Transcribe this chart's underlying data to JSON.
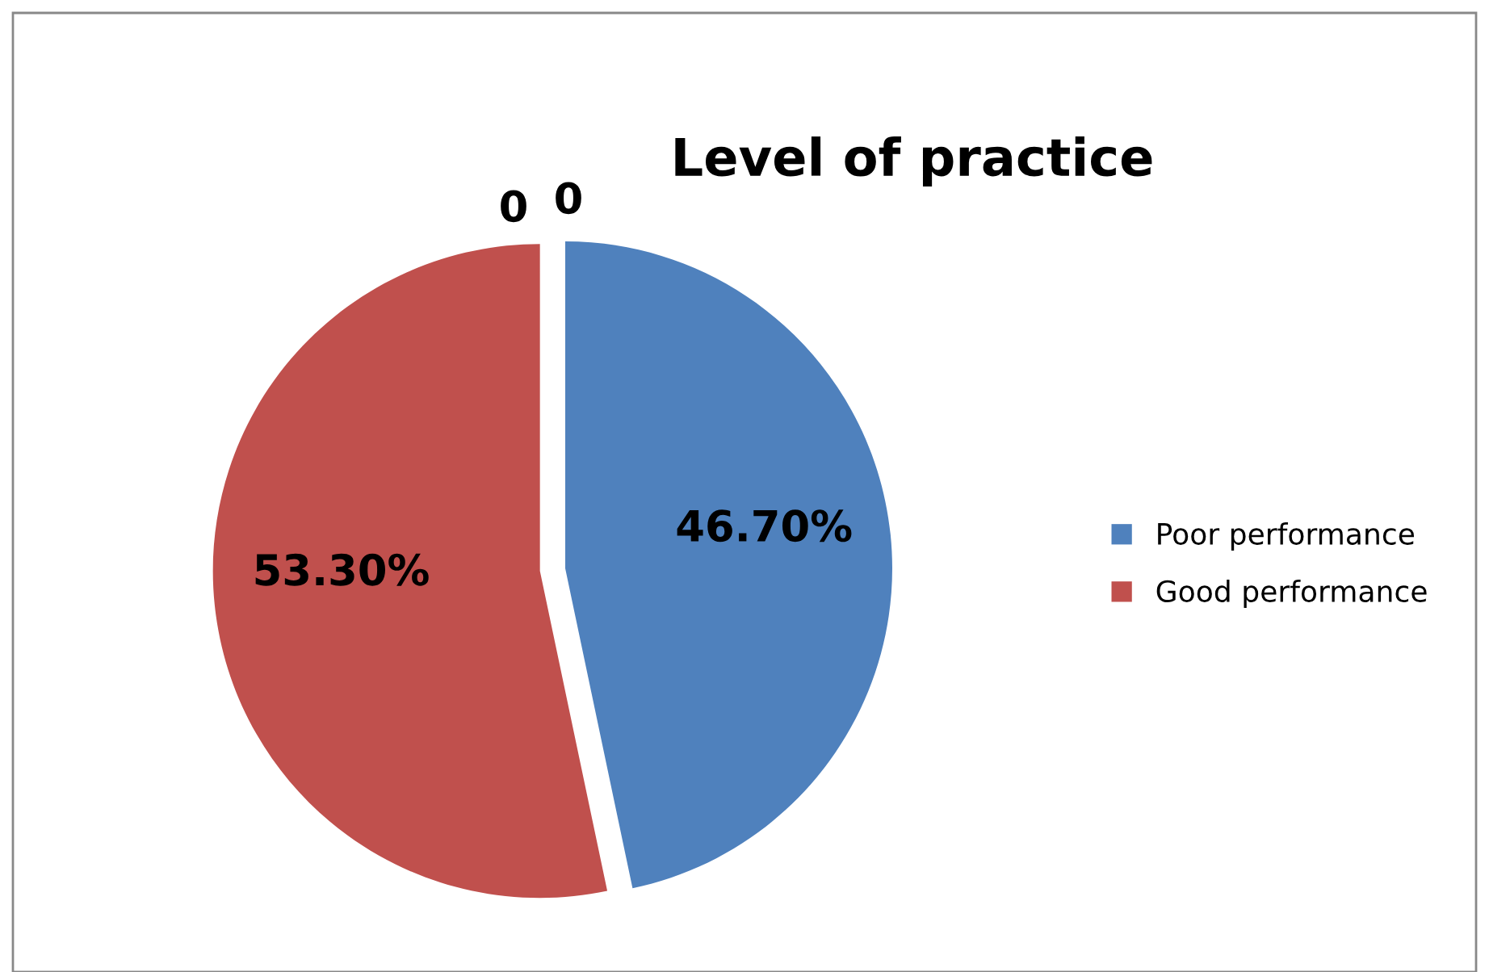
{
  "chart_data": {
    "type": "pie",
    "title": "Level of practice",
    "categories": [
      "Poor performance",
      "Good performance"
    ],
    "values": [
      46.7,
      53.3
    ],
    "value_labels": [
      "46.70%",
      "53.30%"
    ],
    "colors": [
      "#4f81bd",
      "#c0504d"
    ],
    "annotations": [
      "0",
      "0"
    ],
    "legend": "right"
  }
}
